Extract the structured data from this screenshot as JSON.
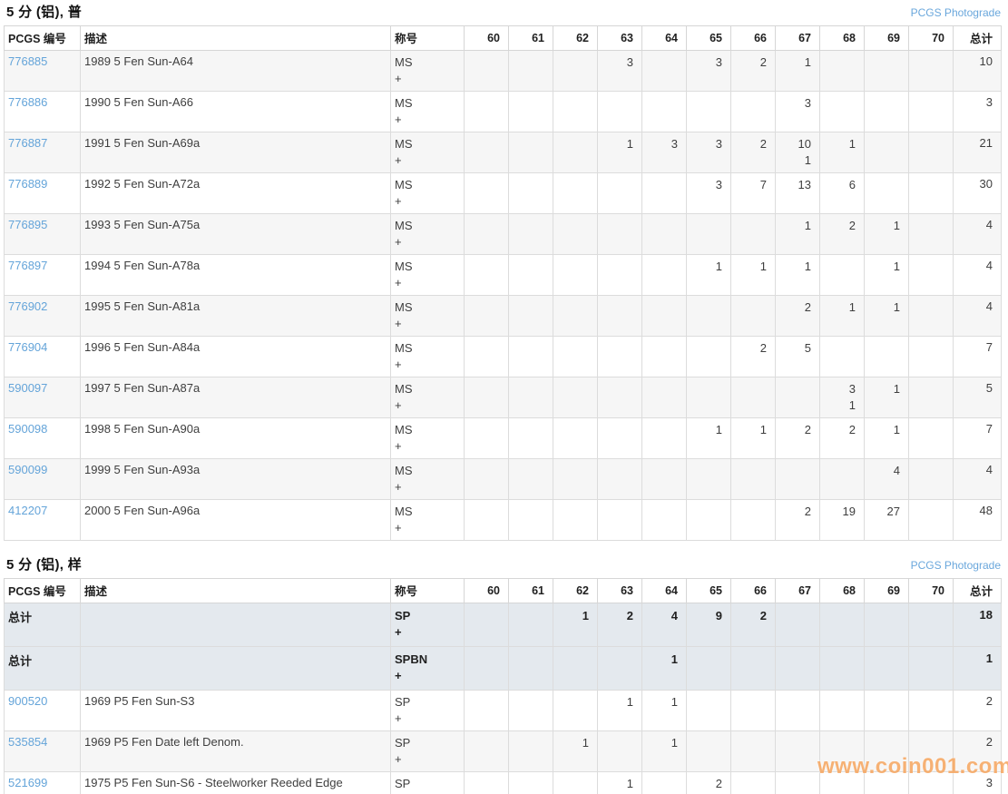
{
  "page": {
    "watermark": "www.coin001.com"
  },
  "colors": {
    "link_blue": "#64a4d9",
    "photograde_link_blue": "#6aa7dc",
    "summary_row_bg": "#e4e9ee",
    "stripe_row_bg": "#f6f6f6",
    "watermark_orange": "#f7a55e"
  },
  "columns": [
    "PCGS 编号",
    "描述",
    "称号",
    "60",
    "61",
    "62",
    "63",
    "64",
    "65",
    "66",
    "67",
    "68",
    "69",
    "70",
    "总计"
  ],
  "grade_columns": [
    "60",
    "61",
    "62",
    "63",
    "64",
    "65",
    "66",
    "67",
    "68",
    "69",
    "70"
  ],
  "tables": [
    {
      "title": "5 分 (铝), 普",
      "photograde_link": "PCGS Photograde",
      "rows": [
        {
          "pcgs": "776885",
          "summary": false,
          "desc": "1989 5 Fen Sun-A64",
          "designation": [
            "MS",
            "+"
          ],
          "grades": {
            "63": [
              "3"
            ],
            "65": [
              "3"
            ],
            "66": [
              "2"
            ],
            "67": [
              "1"
            ]
          },
          "total": "10"
        },
        {
          "pcgs": "776886",
          "summary": false,
          "desc": "1990 5 Fen Sun-A66",
          "designation": [
            "MS",
            "+"
          ],
          "grades": {
            "67": [
              "3"
            ]
          },
          "total": "3"
        },
        {
          "pcgs": "776887",
          "summary": false,
          "desc": "1991 5 Fen Sun-A69a",
          "designation": [
            "MS",
            "+"
          ],
          "grades": {
            "63": [
              "1"
            ],
            "64": [
              "3"
            ],
            "65": [
              "3"
            ],
            "66": [
              "2"
            ],
            "67": [
              "10",
              "1"
            ],
            "68": [
              "1"
            ]
          },
          "total": "21"
        },
        {
          "pcgs": "776889",
          "summary": false,
          "desc": "1992 5 Fen Sun-A72a",
          "designation": [
            "MS",
            "+"
          ],
          "grades": {
            "65": [
              "3"
            ],
            "66": [
              "7"
            ],
            "67": [
              "13"
            ],
            "68": [
              "6"
            ]
          },
          "total": "30"
        },
        {
          "pcgs": "776895",
          "summary": false,
          "desc": "1993 5 Fen Sun-A75a",
          "designation": [
            "MS",
            "+"
          ],
          "grades": {
            "67": [
              "1"
            ],
            "68": [
              "2"
            ],
            "69": [
              "1"
            ]
          },
          "total": "4"
        },
        {
          "pcgs": "776897",
          "summary": false,
          "desc": "1994 5 Fen Sun-A78a",
          "designation": [
            "MS",
            "+"
          ],
          "grades": {
            "65": [
              "1"
            ],
            "66": [
              "1"
            ],
            "67": [
              "1"
            ],
            "69": [
              "1"
            ]
          },
          "total": "4"
        },
        {
          "pcgs": "776902",
          "summary": false,
          "desc": "1995 5 Fen Sun-A81a",
          "designation": [
            "MS",
            "+"
          ],
          "grades": {
            "67": [
              "2"
            ],
            "68": [
              "1"
            ],
            "69": [
              "1"
            ]
          },
          "total": "4"
        },
        {
          "pcgs": "776904",
          "summary": false,
          "desc": "1996 5 Fen Sun-A84a",
          "designation": [
            "MS",
            "+"
          ],
          "grades": {
            "66": [
              "2"
            ],
            "67": [
              "5"
            ]
          },
          "total": "7"
        },
        {
          "pcgs": "590097",
          "summary": false,
          "desc": "1997 5 Fen Sun-A87a",
          "designation": [
            "MS",
            "+"
          ],
          "grades": {
            "68": [
              "3",
              "1"
            ],
            "69": [
              "1"
            ]
          },
          "total": "5"
        },
        {
          "pcgs": "590098",
          "summary": false,
          "desc": "1998 5 Fen Sun-A90a",
          "designation": [
            "MS",
            "+"
          ],
          "grades": {
            "65": [
              "1"
            ],
            "66": [
              "1"
            ],
            "67": [
              "2"
            ],
            "68": [
              "2"
            ],
            "69": [
              "1"
            ]
          },
          "total": "7"
        },
        {
          "pcgs": "590099",
          "summary": false,
          "desc": "1999 5 Fen Sun-A93a",
          "designation": [
            "MS",
            "+"
          ],
          "grades": {
            "69": [
              "4"
            ]
          },
          "total": "4"
        },
        {
          "pcgs": "412207",
          "summary": false,
          "desc": "2000 5 Fen Sun-A96a",
          "designation": [
            "MS",
            "+"
          ],
          "grades": {
            "67": [
              "2"
            ],
            "68": [
              "19"
            ],
            "69": [
              "27"
            ]
          },
          "total": "48"
        }
      ]
    },
    {
      "title": "5 分 (铝), 样",
      "photograde_link": "PCGS Photograde",
      "rows": [
        {
          "pcgs": "总计",
          "summary": true,
          "desc": "",
          "designation": [
            "SP",
            "+"
          ],
          "grades": {
            "62": [
              "1"
            ],
            "63": [
              "2"
            ],
            "64": [
              "4"
            ],
            "65": [
              "9"
            ],
            "66": [
              "2"
            ]
          },
          "total": "18"
        },
        {
          "pcgs": "总计",
          "summary": true,
          "desc": "",
          "designation": [
            "SPBN",
            "+"
          ],
          "grades": {
            "64": [
              "1"
            ]
          },
          "total": "1"
        },
        {
          "pcgs": "900520",
          "summary": false,
          "desc": "1969 P5 Fen Sun-S3",
          "designation": [
            "SP",
            "+"
          ],
          "grades": {
            "63": [
              "1"
            ],
            "64": [
              "1"
            ]
          },
          "total": "2"
        },
        {
          "pcgs": "535854",
          "summary": false,
          "desc": "1969 P5 Fen Date left Denom.",
          "designation": [
            "SP",
            "+"
          ],
          "grades": {
            "62": [
              "1"
            ],
            "64": [
              "1"
            ]
          },
          "total": "2"
        },
        {
          "pcgs": "521699",
          "summary": false,
          "desc": "1975 P5 Fen Sun-S6 - Steelworker Reeded Edge",
          "designation": [
            "SP",
            "+"
          ],
          "grades": {
            "63": [
              "1"
            ],
            "65": [
              "2"
            ]
          },
          "total": "3"
        }
      ]
    }
  ]
}
